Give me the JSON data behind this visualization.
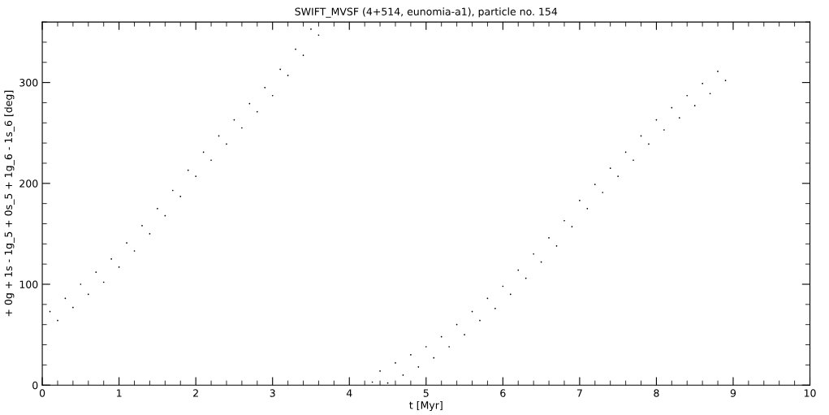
{
  "chart_data": {
    "type": "scatter",
    "title": "SWIFT_MVSF (4+514, eunomia-a1), particle no. 154",
    "xlabel": "t [Myr]",
    "ylabel": "+ 0g + 1s - 1g_5 + 0s_5 + 1g_6 - 1s_6 [deg]",
    "xlim": [
      0,
      10
    ],
    "ylim": [
      0,
      360
    ],
    "xticks": [
      0,
      1,
      2,
      3,
      4,
      5,
      6,
      7,
      8,
      9,
      10
    ],
    "yticks": [
      0,
      100,
      200,
      300
    ],
    "grid": false,
    "marker": "circle",
    "series": [
      {
        "color": "#000000",
        "x": [
          0.1,
          0.2,
          0.3,
          0.4,
          0.5,
          0.6,
          0.7,
          0.8,
          0.9,
          1.0,
          1.1,
          1.2,
          1.3,
          1.4,
          1.5,
          1.6,
          1.7,
          1.8,
          1.9,
          2.0,
          2.1,
          2.2,
          2.3,
          2.4,
          2.5,
          2.6,
          2.7,
          2.8,
          2.9,
          3.0,
          3.1,
          3.2,
          3.3,
          3.4,
          3.5,
          3.6,
          4.3,
          4.4,
          4.5,
          4.6,
          4.7,
          4.8,
          4.9,
          5.0,
          5.1,
          5.2,
          5.3,
          5.4,
          5.5,
          5.6,
          5.7,
          5.8,
          5.9,
          6.0,
          6.1,
          6.2,
          6.3,
          6.4,
          6.5,
          6.6,
          6.7,
          6.8,
          6.9,
          7.0,
          7.1,
          7.2,
          7.3,
          7.4,
          7.5,
          7.6,
          7.7,
          7.8,
          7.9,
          8.0,
          8.1,
          8.2,
          8.3,
          8.4,
          8.5,
          8.6,
          8.7,
          8.8,
          8.9
        ],
        "values": [
          73,
          64,
          86,
          77,
          100,
          90,
          112,
          102,
          125,
          117,
          141,
          133,
          158,
          150,
          175,
          168,
          193,
          187,
          213,
          207,
          231,
          223,
          247,
          239,
          263,
          255,
          279,
          271,
          295,
          287,
          313,
          307,
          333,
          327,
          353,
          347,
          3,
          14,
          2,
          22,
          10,
          30,
          18,
          38,
          27,
          48,
          38,
          60,
          50,
          73,
          64,
          86,
          76,
          98,
          90,
          114,
          106,
          130,
          122,
          146,
          138,
          163,
          157,
          183,
          175,
          199,
          191,
          215,
          207,
          231,
          223,
          247,
          239,
          263,
          253,
          275,
          265,
          287,
          277,
          299,
          289,
          311,
          302
        ]
      }
    ]
  }
}
